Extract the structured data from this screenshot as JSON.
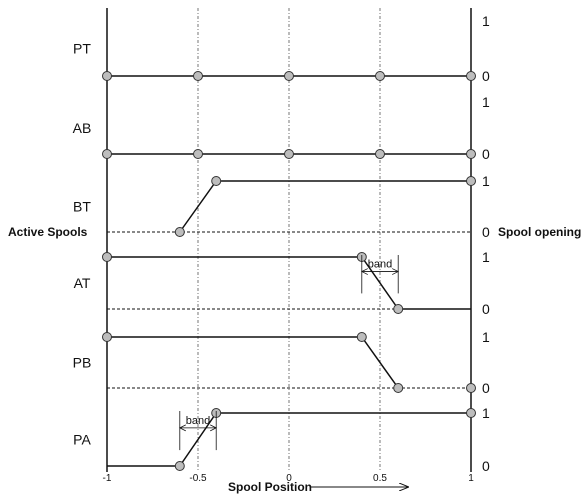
{
  "title": "",
  "left_label": "Active Spools",
  "right_label": "Spool opening",
  "x_axis_label": "Spool Position",
  "x_ticks": [
    {
      "value": -1,
      "label": "-1"
    },
    {
      "value": -0.5,
      "label": "-0.5"
    },
    {
      "value": 0,
      "label": "0"
    },
    {
      "value": 0.5,
      "label": "0.5"
    },
    {
      "value": 1,
      "label": "1"
    }
  ],
  "x_range": [
    -1,
    1
  ],
  "band_label": "band",
  "rows": [
    {
      "id": "PT",
      "label": "PT",
      "one_label": "1",
      "zero_label": "0",
      "points": [
        [
          -1,
          0
        ],
        [
          -0.5,
          0
        ],
        [
          0,
          0
        ],
        [
          0.5,
          0
        ],
        [
          1,
          0
        ]
      ],
      "markers": [
        [
          -1,
          0
        ],
        [
          -0.5,
          0
        ],
        [
          0,
          0
        ],
        [
          0.5,
          0
        ],
        [
          1,
          0
        ]
      ]
    },
    {
      "id": "AB",
      "label": "AB",
      "one_label": "1",
      "zero_label": "0",
      "points": [
        [
          -1,
          0
        ],
        [
          -0.5,
          0
        ],
        [
          0,
          0
        ],
        [
          0.5,
          0
        ],
        [
          1,
          0
        ]
      ],
      "markers": [
        [
          -1,
          0
        ],
        [
          -0.5,
          0
        ],
        [
          0,
          0
        ],
        [
          0.5,
          0
        ],
        [
          1,
          0
        ]
      ]
    },
    {
      "id": "BT",
      "label": "BT",
      "one_label": "1",
      "zero_label": "0",
      "points": [
        [
          -0.6,
          0
        ],
        [
          -0.4,
          1
        ],
        [
          1,
          1
        ]
      ],
      "markers": [
        [
          -0.6,
          0
        ],
        [
          -0.4,
          1
        ],
        [
          1,
          1
        ]
      ],
      "dashed_zero": true
    },
    {
      "id": "AT",
      "label": "AT",
      "one_label": "1",
      "zero_label": "0",
      "points": [
        [
          -1,
          1
        ],
        [
          0.4,
          1
        ],
        [
          0.6,
          0
        ]
      ],
      "markers": [
        [
          -1,
          1
        ],
        [
          0.4,
          1
        ],
        [
          0.6,
          0
        ]
      ],
      "dashed_zero": true,
      "solid_zero_from": 0.6,
      "band": [
        0.4,
        0.6
      ]
    },
    {
      "id": "PB",
      "label": "PB",
      "one_label": "1",
      "zero_label": "0",
      "points": [
        [
          -1,
          1
        ],
        [
          0.4,
          1
        ],
        [
          0.6,
          0
        ]
      ],
      "markers": [
        [
          -1,
          1
        ],
        [
          0.4,
          1
        ],
        [
          0.6,
          0
        ],
        [
          1,
          0
        ]
      ],
      "dashed_zero": true
    },
    {
      "id": "PA",
      "label": "PA",
      "one_label": "1",
      "zero_label": "0",
      "points": [
        [
          -1,
          0
        ],
        [
          -0.6,
          0
        ],
        [
          -0.4,
          1
        ],
        [
          1,
          1
        ]
      ],
      "markers": [
        [
          -0.6,
          0
        ],
        [
          -0.4,
          1
        ],
        [
          1,
          1
        ]
      ],
      "band": [
        -0.6,
        -0.4
      ]
    }
  ]
}
